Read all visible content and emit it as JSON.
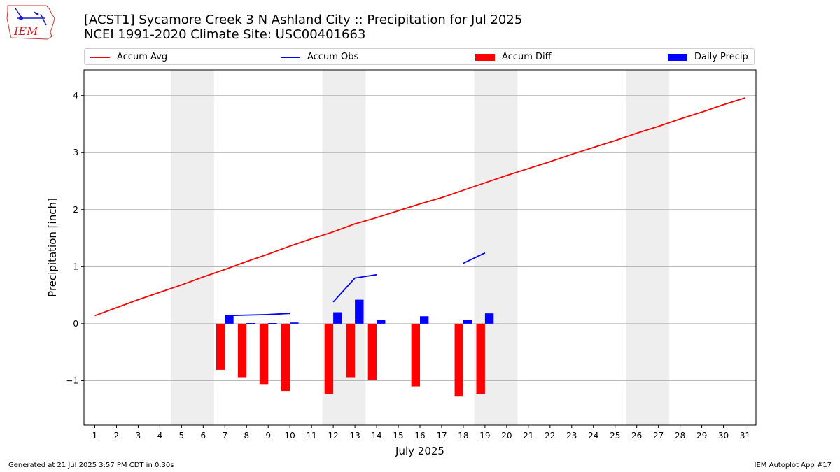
{
  "header": {
    "title_line1": "[ACST1] Sycamore Creek 3 N Ashland City :: Precipitation for Jul 2025",
    "title_line2": "NCEI 1991-2020 Climate Site: USC00401663",
    "logo_text": "IEM"
  },
  "legend": {
    "items": [
      {
        "label": "Accum Avg",
        "color": "#ff0000",
        "kind": "line"
      },
      {
        "label": "Accum Obs",
        "color": "#0000ff",
        "kind": "line"
      },
      {
        "label": "Accum Diff",
        "color": "#ff0000",
        "kind": "bar"
      },
      {
        "label": "Daily Precip",
        "color": "#0000ff",
        "kind": "bar"
      }
    ]
  },
  "footer": {
    "generated": "Generated at 21 Jul 2025 3:57 PM CDT in 0.30s",
    "app": "IEM Autoplot App #17"
  },
  "chart_data": {
    "type": "bar",
    "title": "[ACST1] Sycamore Creek 3 N Ashland City :: Precipitation for Jul 2025",
    "subtitle": "NCEI 1991-2020 Climate Site: USC00401663",
    "xlabel": "July 2025",
    "ylabel": "Precipitation [inch]",
    "xlim": [
      0.5,
      31.5
    ],
    "ylim": [
      -1.78,
      4.45
    ],
    "yticks": [
      -1,
      0,
      1,
      2,
      3,
      4
    ],
    "ytick_labels": [
      "−1",
      "0",
      "1",
      "2",
      "3",
      "4"
    ],
    "xticks": [
      1,
      2,
      3,
      4,
      5,
      6,
      7,
      8,
      9,
      10,
      11,
      12,
      13,
      14,
      15,
      16,
      17,
      18,
      19,
      20,
      21,
      22,
      23,
      24,
      25,
      26,
      27,
      28,
      29,
      30,
      31
    ],
    "grid": "y",
    "legend_position": "top",
    "shaded_days": [
      [
        5,
        6
      ],
      [
        12,
        13
      ],
      [
        19,
        20
      ],
      [
        26,
        27
      ]
    ],
    "shade_color": "#eeeeee",
    "series": [
      {
        "name": "Accum Avg",
        "type": "line",
        "color": "#ff0000",
        "x": [
          1,
          2,
          3,
          4,
          5,
          6,
          7,
          8,
          9,
          10,
          11,
          12,
          13,
          14,
          15,
          16,
          17,
          18,
          19,
          20,
          21,
          22,
          23,
          24,
          25,
          26,
          27,
          28,
          29,
          30,
          31
        ],
        "values": [
          0.14,
          0.28,
          0.42,
          0.55,
          0.68,
          0.82,
          0.95,
          1.09,
          1.22,
          1.36,
          1.49,
          1.61,
          1.75,
          1.86,
          1.98,
          2.1,
          2.21,
          2.34,
          2.47,
          2.6,
          2.72,
          2.84,
          2.97,
          3.09,
          3.21,
          3.34,
          3.46,
          3.59,
          3.71,
          3.84,
          3.96
        ]
      },
      {
        "name": "Accum Obs",
        "type": "line",
        "color": "#0000ff",
        "segments": [
          {
            "x": [
              7,
              8,
              9,
              10
            ],
            "values": [
              0.14,
              0.15,
              0.16,
              0.18
            ]
          },
          {
            "x": [
              12,
              13,
              14
            ],
            "values": [
              0.38,
              0.8,
              0.86
            ]
          },
          {
            "x": [
              18,
              19
            ],
            "values": [
              1.06,
              1.24
            ]
          }
        ]
      },
      {
        "name": "Accum Diff",
        "type": "bar",
        "color": "#ff0000",
        "x": [
          7,
          8,
          9,
          10,
          12,
          13,
          14,
          16,
          18,
          19
        ],
        "values": [
          -0.81,
          -0.94,
          -1.06,
          -1.18,
          -1.23,
          -0.94,
          -0.99,
          -1.1,
          -1.28,
          -1.23
        ]
      },
      {
        "name": "Daily Precip",
        "type": "bar",
        "color": "#0000ff",
        "x": [
          7,
          8,
          9,
          10,
          12,
          13,
          14,
          16,
          18,
          19
        ],
        "values": [
          0.14,
          0.01,
          0.01,
          0.02,
          0.2,
          0.42,
          0.06,
          0.13,
          0.07,
          0.18
        ]
      }
    ]
  }
}
